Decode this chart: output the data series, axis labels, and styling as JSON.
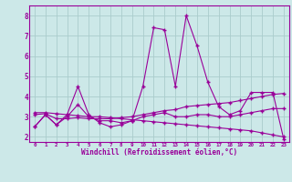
{
  "x": [
    0,
    1,
    2,
    3,
    4,
    5,
    6,
    7,
    8,
    9,
    10,
    11,
    12,
    13,
    14,
    15,
    16,
    17,
    18,
    19,
    20,
    21,
    22,
    23
  ],
  "line1": [
    2.5,
    3.1,
    2.6,
    3.1,
    4.5,
    3.1,
    2.7,
    2.5,
    2.6,
    2.8,
    4.5,
    7.4,
    7.3,
    4.5,
    8.0,
    6.5,
    4.7,
    3.5,
    3.1,
    3.3,
    4.2,
    4.2,
    4.2,
    1.9
  ],
  "line2": [
    2.5,
    3.1,
    2.6,
    3.0,
    3.6,
    3.0,
    2.8,
    2.8,
    2.7,
    2.8,
    3.0,
    3.1,
    3.2,
    3.0,
    3.0,
    3.1,
    3.1,
    3.0,
    3.0,
    3.1,
    3.2,
    3.3,
    3.4,
    3.4
  ],
  "line3": [
    3.1,
    3.15,
    2.9,
    2.9,
    2.95,
    2.9,
    2.9,
    2.9,
    2.95,
    3.0,
    3.1,
    3.2,
    3.3,
    3.35,
    3.5,
    3.55,
    3.6,
    3.65,
    3.7,
    3.8,
    3.9,
    4.0,
    4.1,
    4.15
  ],
  "line4": [
    3.2,
    3.2,
    3.15,
    3.1,
    3.05,
    3.0,
    3.0,
    2.95,
    2.9,
    2.85,
    2.8,
    2.75,
    2.7,
    2.65,
    2.6,
    2.55,
    2.5,
    2.45,
    2.4,
    2.35,
    2.3,
    2.2,
    2.1,
    2.0
  ],
  "line_color": "#990099",
  "bg_color": "#cce8e8",
  "grid_color": "#aacccc",
  "xlabel": "Windchill (Refroidissement éolien,°C)",
  "ylim": [
    1.75,
    8.5
  ],
  "xlim": [
    -0.5,
    23.5
  ],
  "yticks": [
    2,
    3,
    4,
    5,
    6,
    7,
    8
  ]
}
